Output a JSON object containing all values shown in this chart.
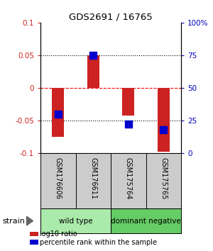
{
  "title": "GDS2691 / 16765",
  "samples": [
    "GSM176606",
    "GSM176611",
    "GSM175764",
    "GSM175765"
  ],
  "log10_ratio": [
    -0.075,
    0.05,
    -0.042,
    -0.098
  ],
  "percentile_rank": [
    0.3,
    0.75,
    0.22,
    0.18
  ],
  "groups": [
    {
      "label": "wild type",
      "samples": [
        0,
        1
      ],
      "color": "#aaeaaa"
    },
    {
      "label": "dominant negative",
      "samples": [
        2,
        3
      ],
      "color": "#66cc66"
    }
  ],
  "group_row_label": "strain",
  "ylim_left": [
    -0.1,
    0.1
  ],
  "ylim_right": [
    0,
    1
  ],
  "yticks_left": [
    -0.1,
    -0.05,
    0,
    0.05,
    0.1
  ],
  "ytick_labels_left": [
    "-0.1",
    "-0.05",
    "0",
    "0.05",
    "0.1"
  ],
  "yticks_right": [
    0,
    0.25,
    0.5,
    0.75,
    1.0
  ],
  "ytick_labels_right": [
    "0",
    "25",
    "50",
    "75",
    "100%"
  ],
  "hlines": [
    -0.05,
    0.0,
    0.05
  ],
  "hline_styles": [
    "dotted",
    "dashed_red",
    "dotted"
  ],
  "bar_color": "#CC2222",
  "dot_color": "#0000CC",
  "bar_width": 0.35,
  "dot_size": 45,
  "legend_items": [
    {
      "color": "#CC2222",
      "label": "log10 ratio"
    },
    {
      "color": "#0000CC",
      "label": "percentile rank within the sample"
    }
  ],
  "background_color": "#FFFFFF",
  "label_color_left": "#CC2222",
  "label_color_right": "#0000BB",
  "sample_label_gray": "#CCCCCC"
}
